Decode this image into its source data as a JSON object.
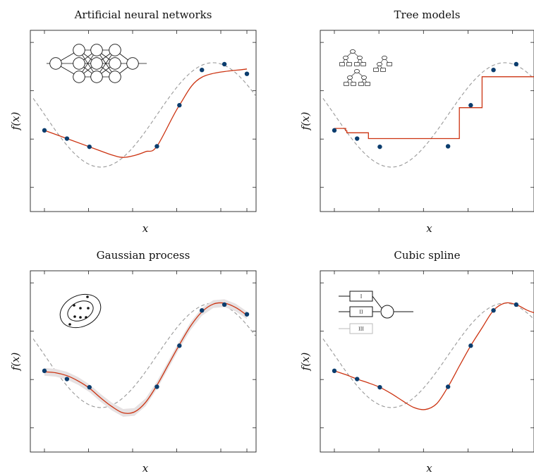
{
  "chart_data": [
    {
      "type": "line",
      "title": "Artificial neural networks",
      "xlabel": "x",
      "ylabel": "f(x)",
      "xlim": [
        0,
        9
      ],
      "ylim": [
        -1.5,
        2.25
      ],
      "grid": false,
      "icon": "neural-network-icon",
      "points": {
        "x": [
          0,
          1,
          2,
          5,
          6,
          7,
          8,
          9
        ],
        "y": [
          0.18,
          0.01,
          -0.16,
          -0.15,
          0.7,
          1.43,
          1.55,
          1.35
        ]
      },
      "true_curve": "sin",
      "fit": {
        "x": [
          0,
          1,
          2,
          3,
          3.5,
          4,
          4.5,
          5,
          6,
          7,
          9
        ],
        "y": [
          0.18,
          0.01,
          -0.16,
          -0.33,
          -0.38,
          -0.34,
          -0.26,
          -0.15,
          0.7,
          1.28,
          1.45
        ]
      }
    },
    {
      "type": "line",
      "title": "Tree models",
      "xlabel": "x",
      "ylabel": "f(x)",
      "xlim": [
        0,
        9
      ],
      "ylim": [
        -1.5,
        2.25
      ],
      "grid": false,
      "icon": "decision-trees-icon",
      "points": {
        "x": [
          0,
          1,
          2,
          5,
          6,
          7,
          8,
          9
        ],
        "y": [
          0.18,
          0.01,
          -0.16,
          -0.15,
          0.7,
          1.43,
          1.55,
          1.35
        ]
      },
      "true_curve": "sin",
      "fit": {
        "x": [
          0,
          0.5,
          0.5,
          0.55,
          0.55,
          1.5,
          1.5,
          5.5,
          5.5,
          6.5,
          6.5,
          9
        ],
        "y": [
          0.22,
          0.22,
          0.17,
          0.17,
          0.13,
          0.13,
          0.01,
          0.01,
          0.65,
          0.65,
          1.29,
          1.29
        ]
      }
    },
    {
      "type": "line",
      "title": "Gaussian process",
      "xlabel": "x",
      "ylabel": "f(x)",
      "xlim": [
        0,
        9
      ],
      "ylim": [
        -1.5,
        2.25
      ],
      "grid": false,
      "icon": "gaussian-ellipse-icon",
      "points": {
        "x": [
          0,
          1,
          2,
          5,
          6,
          7,
          8,
          9
        ],
        "y": [
          0.18,
          0.01,
          -0.16,
          -0.15,
          0.7,
          1.43,
          1.55,
          1.35
        ]
      },
      "true_curve": "sin",
      "fit": {
        "x": [
          0,
          0.5,
          1,
          1.5,
          2,
          2.5,
          3,
          3.5,
          4,
          4.5,
          5,
          5.5,
          6,
          6.5,
          7,
          7.5,
          8,
          8.5,
          9
        ],
        "y": [
          0.16,
          0.14,
          0.08,
          -0.03,
          -0.18,
          -0.38,
          -0.56,
          -0.69,
          -0.67,
          -0.47,
          -0.12,
          0.3,
          0.72,
          1.11,
          1.4,
          1.56,
          1.58,
          1.49,
          1.33
        ]
      },
      "band": 0.08
    },
    {
      "type": "line",
      "title": "Cubic spline",
      "xlabel": "x",
      "ylabel": "f(x)",
      "xlim": [
        0,
        9
      ],
      "ylim": [
        -1.5,
        2.25
      ],
      "grid": false,
      "icon": "spline-basis-icon",
      "icon_labels": [
        "I",
        "II",
        "III"
      ],
      "points": {
        "x": [
          0,
          1,
          2,
          5,
          6,
          7,
          8,
          9
        ],
        "y": [
          0.18,
          0.01,
          -0.16,
          -0.15,
          0.7,
          1.43,
          1.55,
          1.35
        ]
      },
      "true_curve": "sin",
      "fit": {
        "x": [
          0,
          0.5,
          1,
          1.5,
          2,
          2.5,
          3,
          3.5,
          4,
          4.5,
          5,
          5.5,
          6,
          6.5,
          7,
          7.5,
          8,
          8.5,
          9
        ],
        "y": [
          0.18,
          0.1,
          0.01,
          -0.07,
          -0.16,
          -0.29,
          -0.44,
          -0.58,
          -0.62,
          -0.5,
          -0.15,
          0.28,
          0.7,
          1.07,
          1.43,
          1.58,
          1.55,
          1.43,
          1.35
        ]
      }
    }
  ],
  "colors": {
    "fit": "#cc3311",
    "true": "#999999",
    "points": "#0b3d6e",
    "band": "#e6e1e2",
    "axis": "#222222"
  }
}
